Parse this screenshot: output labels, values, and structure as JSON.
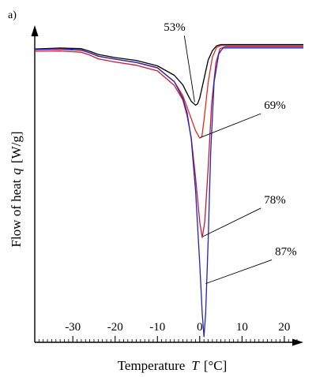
{
  "panel_label": "a)",
  "chart_data": {
    "type": "line",
    "xlabel": "Temperature",
    "xlabel_symbol": "T",
    "xlabel_unit": "[°C]",
    "ylabel": "Flow of heat",
    "ylabel_symbol": "q",
    "ylabel_unit": "[W/g]",
    "xlim": [
      -39,
      24.5
    ],
    "ylim": [
      0,
      100
    ],
    "x_ticks": [
      -30,
      -20,
      -10,
      0,
      10,
      20
    ],
    "y_ticks_labeled": false,
    "grid": false,
    "legend": "none",
    "series": [
      {
        "name": "53%",
        "color": "#000000",
        "points": [
          [
            -39,
            92.5
          ],
          [
            -33,
            92.8
          ],
          [
            -28,
            92.6
          ],
          [
            -26,
            91.8
          ],
          [
            -24,
            90.8
          ],
          [
            -20,
            89.8
          ],
          [
            -15,
            88.9
          ],
          [
            -10,
            87.2
          ],
          [
            -6,
            84.2
          ],
          [
            -4,
            81.2
          ],
          [
            -3,
            78.5
          ],
          [
            -2,
            76
          ],
          [
            -1,
            74.8
          ],
          [
            -0.5,
            75.2
          ],
          [
            0,
            77
          ],
          [
            1,
            83
          ],
          [
            2,
            89
          ],
          [
            3,
            92
          ],
          [
            4,
            93.5
          ],
          [
            5,
            93.9
          ],
          [
            24.5,
            93.9
          ]
        ]
      },
      {
        "name": "69%",
        "color": "#e8291c",
        "points": [
          [
            -39,
            92.3
          ],
          [
            -33,
            92.4
          ],
          [
            -28,
            92.1
          ],
          [
            -26,
            91.3
          ],
          [
            -24,
            90.3
          ],
          [
            -20,
            89.3
          ],
          [
            -15,
            88.2
          ],
          [
            -10,
            86.5
          ],
          [
            -6,
            82.2
          ],
          [
            -4,
            77.8
          ],
          [
            -3,
            74.2
          ],
          [
            -2,
            70.5
          ],
          [
            -1,
            66.8
          ],
          [
            0,
            64.4
          ],
          [
            0.5,
            64.8
          ],
          [
            1,
            70
          ],
          [
            2,
            82
          ],
          [
            3,
            90
          ],
          [
            4,
            93
          ],
          [
            5,
            93.6
          ],
          [
            24.5,
            93.6
          ]
        ]
      },
      {
        "name": "78%",
        "color": "#c21a3a",
        "points": [
          [
            -39,
            91.8
          ],
          [
            -33,
            91.9
          ],
          [
            -28,
            91.5
          ],
          [
            -26,
            90.6
          ],
          [
            -24,
            89.4
          ],
          [
            -20,
            88.4
          ],
          [
            -15,
            87.4
          ],
          [
            -10,
            85.6
          ],
          [
            -6,
            81
          ],
          [
            -4,
            76.5
          ],
          [
            -3,
            71.5
          ],
          [
            -2,
            64.5
          ],
          [
            -1,
            52
          ],
          [
            0,
            38
          ],
          [
            0.6,
            33
          ],
          [
            1.2,
            38
          ],
          [
            2,
            55
          ],
          [
            2.8,
            75
          ],
          [
            3.8,
            88
          ],
          [
            4.8,
            92.6
          ],
          [
            6,
            93.2
          ],
          [
            24.5,
            93.2
          ]
        ]
      },
      {
        "name": "87%",
        "color": "#2323b5",
        "points": [
          [
            -39,
            92.3
          ],
          [
            -33,
            92.6
          ],
          [
            -28,
            92.2
          ],
          [
            -26,
            91.3
          ],
          [
            -24,
            90.2
          ],
          [
            -20,
            89.3
          ],
          [
            -15,
            88.3
          ],
          [
            -10,
            86.6
          ],
          [
            -6,
            82.2
          ],
          [
            -4,
            77
          ],
          [
            -3,
            72.5
          ],
          [
            -2,
            64
          ],
          [
            -1,
            48
          ],
          [
            0,
            25
          ],
          [
            0.6,
            9
          ],
          [
            1,
            1.8
          ],
          [
            1.4,
            9
          ],
          [
            2,
            32
          ],
          [
            2.6,
            60
          ],
          [
            3.4,
            82
          ],
          [
            4.5,
            91
          ],
          [
            5.5,
            92.8
          ],
          [
            24.5,
            92.8
          ]
        ]
      }
    ],
    "annotations": [
      {
        "text": "53%",
        "series": "53%",
        "tip": [
          -1.2,
          75.8
        ],
        "label": [
          -8.5,
          98.2
        ]
      },
      {
        "text": "69%",
        "series": "69%",
        "tip": [
          0.2,
          64.6
        ],
        "label": [
          15.2,
          73.6
        ]
      },
      {
        "text": "78%",
        "series": "78%",
        "tip": [
          0.8,
          33.4
        ],
        "label": [
          15.2,
          43.8
        ]
      },
      {
        "text": "87%",
        "series": "87%",
        "tip": [
          1.4,
          18.5
        ],
        "label": [
          17.8,
          27.5
        ]
      }
    ]
  }
}
